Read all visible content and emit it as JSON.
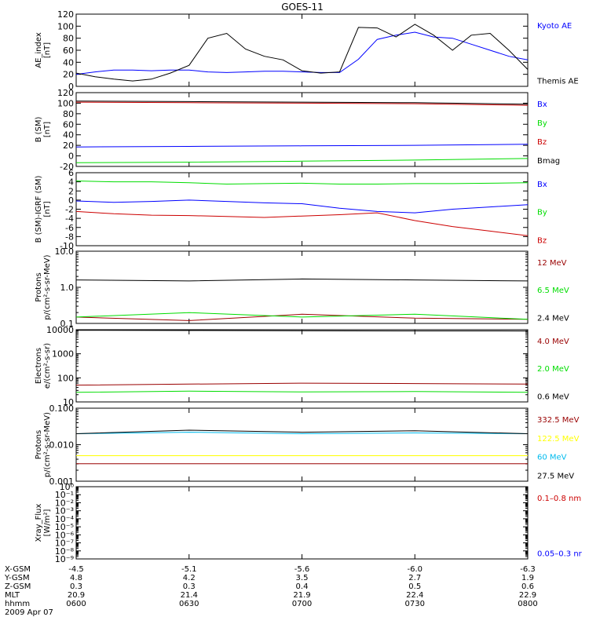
{
  "title": "GOES-11",
  "ephemeris": {
    "labels": [
      "X-GSM",
      "Y-GSM",
      "Z-GSM",
      "MLT",
      "hhmm",
      "2009 Apr 07"
    ],
    "rows": [
      [
        "-4.5",
        "-5.1",
        "-5.6",
        "-6.0",
        "-6.3"
      ],
      [
        "4.8",
        "4.2",
        "3.5",
        "2.7",
        "1.9"
      ],
      [
        "0.3",
        "0.3",
        "0.4",
        "0.5",
        "0.6"
      ],
      [
        "20.9",
        "21.4",
        "21.9",
        "22.4",
        "22.9"
      ],
      [
        "0600",
        "0630",
        "0700",
        "0730",
        "0800"
      ]
    ]
  },
  "chart_data": [
    {
      "type": "line",
      "ylabel": [
        "AE_index",
        "[nT]"
      ],
      "yscale": "linear",
      "ylim": [
        0,
        120
      ],
      "yticks": [
        "0",
        "20",
        "40",
        "60",
        "80",
        "100",
        "120"
      ],
      "x": [
        "0600",
        "0605",
        "0610",
        "0615",
        "0620",
        "0625",
        "0630",
        "0635",
        "0640",
        "0645",
        "0650",
        "0655",
        "0700",
        "0705",
        "0710",
        "0715",
        "0720",
        "0725",
        "0730",
        "0735",
        "0740",
        "0745",
        "0750",
        "0755",
        "0800"
      ],
      "series": [
        {
          "name": "Kyoto AE",
          "color": "#0000ff",
          "values": [
            20,
            24,
            27,
            27,
            26,
            27,
            27,
            24,
            23,
            24,
            25,
            25,
            24,
            23,
            23,
            45,
            78,
            85,
            90,
            82,
            80,
            70,
            60,
            50,
            44
          ]
        },
        {
          "name": "Themis AE",
          "color": "#000000",
          "values": [
            22,
            16,
            12,
            9,
            12,
            22,
            35,
            80,
            88,
            62,
            50,
            44,
            26,
            22,
            24,
            98,
            97,
            82,
            103,
            85,
            60,
            85,
            88,
            60,
            28
          ]
        }
      ]
    },
    {
      "type": "line",
      "ylabel": [
        "B (SM)",
        "[nT]"
      ],
      "yscale": "linear",
      "ylim": [
        -20,
        120
      ],
      "yticks": [
        "-20",
        "0",
        "20",
        "40",
        "60",
        "80",
        "100",
        "120"
      ],
      "x": [
        "0600",
        "0630",
        "0700",
        "0730",
        "0800"
      ],
      "series": [
        {
          "name": "Bx",
          "color": "#0000ff",
          "values": [
            17,
            18,
            19,
            20,
            22
          ]
        },
        {
          "name": "By",
          "color": "#00dd00",
          "values": [
            -13,
            -12,
            -10,
            -8,
            -5
          ]
        },
        {
          "name": "Bz",
          "color": "#cc0000",
          "values": [
            102,
            101,
            100,
            99,
            96
          ]
        },
        {
          "name": "Bmag",
          "color": "#000000",
          "values": [
            104,
            103,
            102,
            101,
            98
          ]
        }
      ]
    },
    {
      "type": "line",
      "ylabel": [
        "B (SM)-IGRF (SM)",
        "[nT]"
      ],
      "yscale": "linear",
      "ylim": [
        -10,
        6
      ],
      "yticks": [
        "-10",
        "-8",
        "-6",
        "-4",
        "-2",
        "0",
        "2",
        "4",
        "6"
      ],
      "x": [
        "0600",
        "0610",
        "0620",
        "0630",
        "0640",
        "0650",
        "0700",
        "0710",
        "0720",
        "0730",
        "0740",
        "0750",
        "0800"
      ],
      "series": [
        {
          "name": "Bx",
          "color": "#0000ff",
          "values": [
            -0.2,
            -0.5,
            -0.3,
            0.0,
            -0.3,
            -0.6,
            -0.8,
            -1.8,
            -2.5,
            -2.8,
            -2.0,
            -1.5,
            -1.0
          ]
        },
        {
          "name": "By",
          "color": "#00dd00",
          "values": [
            4.2,
            4.0,
            4.0,
            3.8,
            3.5,
            3.6,
            3.7,
            3.5,
            3.5,
            3.6,
            3.6,
            3.7,
            3.8
          ]
        },
        {
          "name": "Bz",
          "color": "#cc0000",
          "values": [
            -2.5,
            -3.0,
            -3.3,
            -3.4,
            -3.6,
            -3.8,
            -3.5,
            -3.2,
            -2.8,
            -4.5,
            -5.8,
            -6.8,
            -7.8
          ]
        }
      ]
    },
    {
      "type": "line",
      "ylabel": [
        "Protons",
        "p/(cm²-s-sr-MeV)"
      ],
      "yscale": "log",
      "ylim": [
        0.1,
        10
      ],
      "yticks": [
        "0.1",
        "1.0",
        "10.0"
      ],
      "x": [
        "0600",
        "0630",
        "0700",
        "0730",
        "0800"
      ],
      "series": [
        {
          "name": "12 MeV",
          "color": "#990000",
          "values": [
            0.15,
            0.12,
            0.18,
            0.14,
            0.13
          ]
        },
        {
          "name": "6.5 MeV",
          "color": "#00dd00",
          "values": [
            0.15,
            0.2,
            0.15,
            0.18,
            0.13
          ]
        },
        {
          "name": "2.4 MeV",
          "color": "#000000",
          "values": [
            1.6,
            1.5,
            1.7,
            1.6,
            1.5
          ]
        }
      ]
    },
    {
      "type": "line",
      "ylabel": [
        "Electrons",
        "e/(cm²-s-sr)"
      ],
      "yscale": "log",
      "ylim": [
        10,
        10000
      ],
      "yticks": [
        "10",
        "100",
        "1000",
        "10000"
      ],
      "x": [
        "0600",
        "0630",
        "0700",
        "0730",
        "0800"
      ],
      "series": [
        {
          "name": "4.0 MeV",
          "color": "#990000",
          "values": [
            50,
            55,
            60,
            58,
            55
          ]
        },
        {
          "name": "2.0 MeV",
          "color": "#00dd00",
          "values": [
            25,
            28,
            26,
            27,
            25
          ]
        },
        {
          "name": "0.6 MeV",
          "color": "#000000",
          "values": [
            9500,
            9300,
            9000,
            8900,
            8800
          ]
        }
      ]
    },
    {
      "type": "line",
      "ylabel": [
        "Protons",
        "p/(cm²-s-sr-MeV)"
      ],
      "yscale": "log",
      "ylim": [
        0.001,
        0.1
      ],
      "yticks": [
        "0.001",
        "0.010",
        "0.100"
      ],
      "x": [
        "0600",
        "0630",
        "0700",
        "0730",
        "0800"
      ],
      "series": [
        {
          "name": "332.5 MeV",
          "color": "#990000",
          "values": [
            0.003,
            0.003,
            0.003,
            0.003,
            0.003
          ]
        },
        {
          "name": "122.5 MeV",
          "color": "#ffff00",
          "values": [
            0.005,
            0.005,
            0.005,
            0.005,
            0.005
          ]
        },
        {
          "name": "60 MeV",
          "color": "#00bbee",
          "values": [
            0.02,
            0.022,
            0.02,
            0.021,
            0.02
          ]
        },
        {
          "name": "27.5 MeV",
          "color": "#000000",
          "values": [
            0.02,
            0.025,
            0.022,
            0.024,
            0.02
          ]
        }
      ]
    },
    {
      "type": "line",
      "ylabel": [
        "Xray_Flux",
        "[W/m²]"
      ],
      "yscale": "log",
      "ylim": [
        1e-09,
        1
      ],
      "yticks": [
        "10⁻⁹",
        "10⁻⁸",
        "10⁻⁷",
        "10⁻⁶",
        "10⁻⁵",
        "10⁻⁴",
        "10⁻³",
        "10⁻²",
        "10⁻¹",
        "10⁰"
      ],
      "x": [],
      "series": [
        {
          "name": "0.1–0.8 nm",
          "color": "#cc0000",
          "values": []
        },
        {
          "name": "0.05–0.3 nr",
          "color": "#0000ff",
          "values": []
        }
      ]
    }
  ]
}
